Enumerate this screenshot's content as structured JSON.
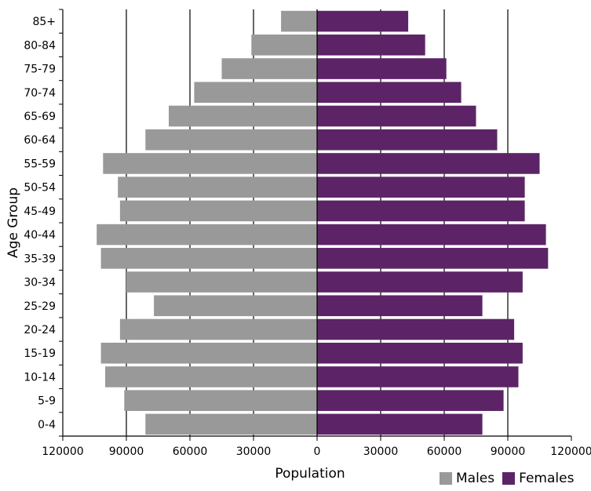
{
  "chart_data": {
    "type": "bar",
    "orientation": "horizontal",
    "layout": "population-pyramid",
    "xlabel": "Population",
    "ylabel": "Age Group",
    "xlim": [
      -120000,
      120000
    ],
    "x_ticks": [
      -120000,
      -90000,
      -60000,
      -30000,
      0,
      30000,
      60000,
      90000,
      120000
    ],
    "x_tick_labels": [
      "120000",
      "90000",
      "60000",
      "30000",
      "0",
      "30000",
      "60000",
      "90000",
      "120000"
    ],
    "grid": "vertical",
    "legend_position": "bottom-right",
    "categories": [
      "0-4",
      "5-9",
      "10-14",
      "15-19",
      "20-24",
      "25-29",
      "30-34",
      "35-39",
      "40-44",
      "45-49",
      "50-54",
      "55-59",
      "60-64",
      "65-69",
      "70-74",
      "75-79",
      "80-84",
      "85+"
    ],
    "series": [
      {
        "name": "Males",
        "color": "#999999",
        "side": "left",
        "values": [
          81000,
          91000,
          100000,
          102000,
          93000,
          77000,
          90000,
          102000,
          104000,
          93000,
          94000,
          101000,
          81000,
          70000,
          58000,
          45000,
          31000,
          17000
        ]
      },
      {
        "name": "Females",
        "color": "#5c2466",
        "side": "right",
        "values": [
          78000,
          88000,
          95000,
          97000,
          93000,
          78000,
          97000,
          109000,
          108000,
          98000,
          98000,
          105000,
          85000,
          75000,
          68000,
          61000,
          51000,
          43000
        ]
      }
    ]
  }
}
